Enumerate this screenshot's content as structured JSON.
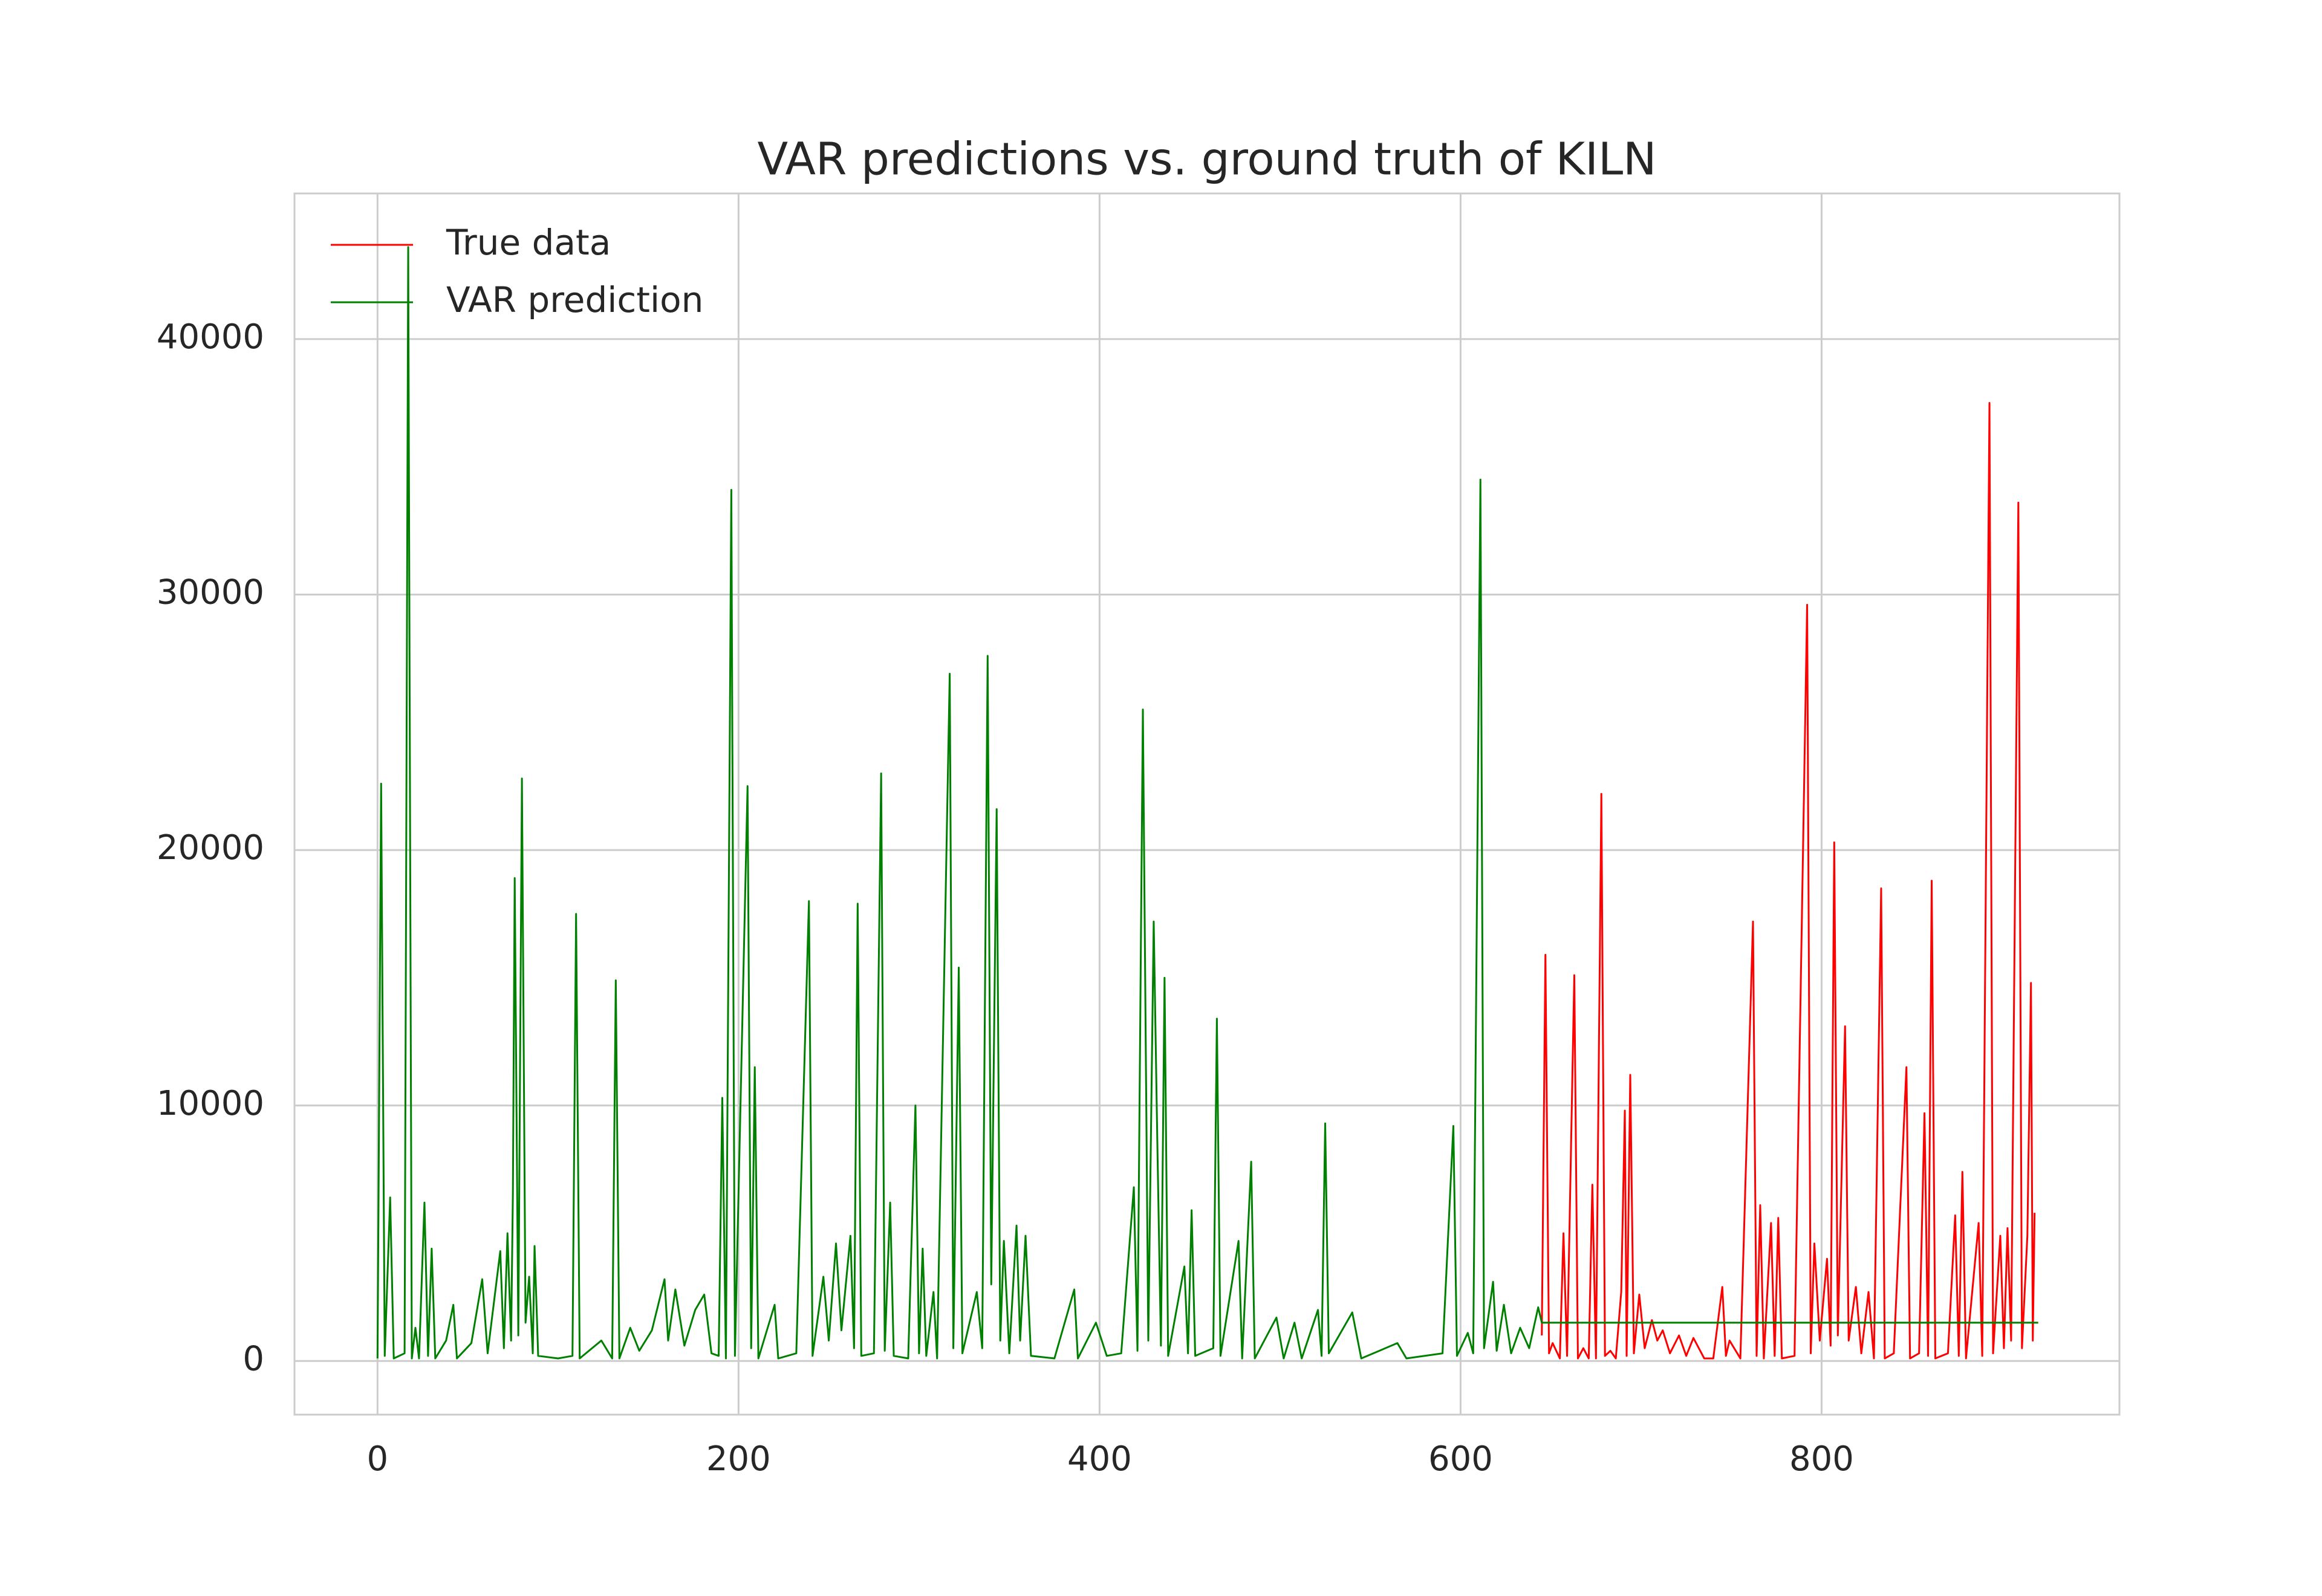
{
  "chart_data": {
    "type": "line",
    "title": "VAR predictions vs. ground truth of KILN",
    "xlim": [
      -46,
      965
    ],
    "xticks": [
      0,
      200,
      400,
      600,
      800
    ],
    "ylim": [
      -2100,
      45700
    ],
    "yticks": [
      0,
      10000,
      20000,
      30000,
      40000
    ],
    "grid": true,
    "legend": "upper left",
    "series": [
      {
        "name": "True data",
        "color": "#ff0000",
        "x": [
          645,
          647,
          649,
          651,
          655,
          657,
          659,
          663,
          665,
          668,
          671,
          673,
          675,
          678,
          680,
          683,
          686,
          689,
          691,
          692,
          694,
          696,
          699,
          702,
          706,
          709,
          712,
          716,
          721,
          725,
          729,
          735,
          740,
          745,
          747,
          749,
          755,
          762,
          764,
          766,
          768,
          772,
          774,
          776,
          778,
          785,
          792,
          794,
          796,
          799,
          803,
          805,
          807,
          809,
          813,
          815,
          819,
          822,
          826,
          829,
          833,
          835,
          840,
          847,
          849,
          854,
          857,
          859,
          861,
          863,
          870,
          874,
          876,
          878,
          880,
          887,
          889,
          893,
          895,
          899,
          901,
          903,
          905,
          909,
          911,
          914,
          916,
          917,
          918
        ],
        "values": [
          1000,
          15900,
          300,
          700,
          100,
          5000,
          200,
          15100,
          100,
          500,
          100,
          6900,
          100,
          22200,
          200,
          400,
          100,
          2700,
          9800,
          200,
          11200,
          300,
          2600,
          500,
          1600,
          800,
          1200,
          300,
          1000,
          200,
          900,
          100,
          100,
          2900,
          200,
          800,
          100,
          17200,
          200,
          6100,
          100,
          5400,
          200,
          5600,
          100,
          200,
          29600,
          300,
          4600,
          800,
          4000,
          600,
          20300,
          1000,
          13100,
          800,
          2900,
          300,
          2700,
          100,
          18500,
          100,
          300,
          11500,
          100,
          300,
          9700,
          200,
          18800,
          100,
          300,
          5700,
          200,
          7400,
          100,
          5400,
          200,
          37500,
          300,
          4900,
          500,
          5200,
          800,
          33600,
          500,
          4900,
          14800,
          800,
          5800
        ]
      },
      {
        "name": "VAR prediction",
        "color": "#008000",
        "x": [
          0,
          2,
          4,
          7,
          9,
          15,
          17,
          19,
          21,
          23,
          26,
          28,
          30,
          32,
          38,
          42,
          44,
          52,
          58,
          61,
          68,
          70,
          72,
          74,
          75,
          76,
          78,
          80,
          82,
          84,
          86,
          87,
          89,
          100,
          108,
          110,
          112,
          124,
          130,
          132,
          134,
          140,
          145,
          152,
          159,
          161,
          165,
          170,
          176,
          181,
          185,
          189,
          191,
          193,
          196,
          198,
          205,
          207,
          209,
          211,
          220,
          222,
          232,
          239,
          241,
          247,
          250,
          254,
          257,
          262,
          264,
          266,
          268,
          275,
          279,
          281,
          284,
          286,
          294,
          298,
          300,
          302,
          304,
          308,
          310,
          317,
          319,
          322,
          324,
          332,
          335,
          338,
          340,
          343,
          345,
          347,
          350,
          354,
          356,
          359,
          362,
          375,
          386,
          388,
          398,
          404,
          412,
          419,
          421,
          424,
          427,
          430,
          432,
          434,
          436,
          438,
          447,
          449,
          451,
          453,
          463,
          465,
          467,
          477,
          479,
          484,
          486,
          498,
          502,
          508,
          512,
          521,
          523,
          525,
          527,
          540,
          545,
          565,
          570,
          590,
          596,
          598,
          604,
          607,
          611,
          613,
          618,
          620,
          624,
          628,
          633,
          638,
          643,
          645,
          920
        ],
        "values": [
          100,
          22600,
          200,
          6400,
          100,
          300,
          43600,
          100,
          1300,
          100,
          6200,
          200,
          4400,
          100,
          800,
          2200,
          100,
          700,
          3200,
          300,
          4300,
          500,
          5000,
          800,
          6600,
          18900,
          1000,
          22800,
          1500,
          3300,
          300,
          4500,
          200,
          100,
          200,
          17500,
          100,
          800,
          100,
          14900,
          100,
          1300,
          400,
          1200,
          3200,
          800,
          2800,
          600,
          2000,
          2600,
          300,
          200,
          10300,
          100,
          34100,
          200,
          22500,
          500,
          11500,
          100,
          2200,
          100,
          300,
          18000,
          200,
          3300,
          800,
          4600,
          1200,
          4900,
          500,
          17900,
          200,
          300,
          23000,
          400,
          6200,
          200,
          100,
          10000,
          300,
          4400,
          200,
          2700,
          100,
          26900,
          500,
          15400,
          300,
          2700,
          500,
          27600,
          3000,
          21600,
          800,
          4700,
          300,
          5300,
          800,
          4900,
          200,
          100,
          2800,
          100,
          1500,
          200,
          300,
          6800,
          400,
          25500,
          800,
          17200,
          8600,
          600,
          15000,
          200,
          3700,
          300,
          5900,
          200,
          500,
          13400,
          200,
          4700,
          100,
          7800,
          100,
          1700,
          100,
          1500,
          100,
          2000,
          200,
          9300,
          300,
          1900,
          100,
          700,
          100,
          300,
          9200,
          200,
          1100,
          300,
          34500,
          500,
          3100,
          400,
          2200,
          300,
          1300,
          500,
          2100,
          1500,
          1500
        ]
      }
    ]
  }
}
